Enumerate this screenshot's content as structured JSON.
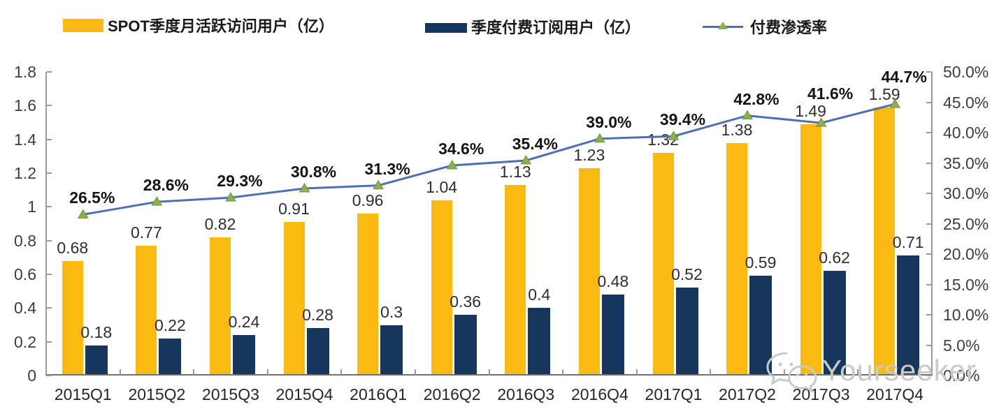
{
  "legend": [
    {
      "label": "SPOT季度月活跃访问用户（亿）",
      "type": "bar",
      "color": "#FBBA12"
    },
    {
      "label": "季度付费订阅用户（亿）",
      "type": "bar",
      "color": "#17365D"
    },
    {
      "label": "付费渗透率",
      "type": "line",
      "color": "#4C6FB5",
      "marker_color": "#8DB04C"
    }
  ],
  "chart_data": {
    "type": "combo-bar-line",
    "title": "",
    "categories": [
      "2015Q1",
      "2015Q2",
      "2015Q3",
      "2015Q4",
      "2016Q1",
      "2016Q2",
      "2016Q3",
      "2016Q4",
      "2017Q1",
      "2017Q2",
      "2017Q3",
      "2017Q4"
    ],
    "series": [
      {
        "name": "SPOT季度月活跃访问用户（亿）",
        "type": "bar",
        "axis": "left",
        "color": "#FBBA12",
        "values": [
          0.68,
          0.77,
          0.82,
          0.91,
          0.96,
          1.04,
          1.13,
          1.23,
          1.32,
          1.38,
          1.49,
          1.59
        ],
        "labels": [
          "0.68",
          "0.77",
          "0.82",
          "0.91",
          "0.96",
          "1.04",
          "1.13",
          "1.23",
          "1.32",
          "1.38",
          "1.49",
          "1.59"
        ]
      },
      {
        "name": "季度付费订阅用户（亿）",
        "type": "bar",
        "axis": "left",
        "color": "#17365D",
        "values": [
          0.18,
          0.22,
          0.24,
          0.28,
          0.3,
          0.36,
          0.4,
          0.48,
          0.52,
          0.59,
          0.62,
          0.71
        ],
        "labels": [
          "0.18",
          "0.22",
          "0.24",
          "0.28",
          "0.3",
          "0.36",
          "0.4",
          "0.48",
          "0.52",
          "0.59",
          "0.62",
          "0.71"
        ]
      },
      {
        "name": "付费渗透率",
        "type": "line",
        "axis": "right",
        "color": "#4C6FB5",
        "marker": "triangle",
        "marker_color": "#8DB04C",
        "marker_edge": "#6E963C",
        "values": [
          26.5,
          28.6,
          29.3,
          30.8,
          31.3,
          34.6,
          35.4,
          39.0,
          39.4,
          42.8,
          41.6,
          44.7
        ],
        "labels": [
          "26.5%",
          "28.6%",
          "29.3%",
          "30.8%",
          "31.3%",
          "34.6%",
          "35.4%",
          "39.0%",
          "39.4%",
          "42.8%",
          "41.6%",
          "44.7%"
        ]
      }
    ],
    "left_axis": {
      "min": 0,
      "max": 1.8,
      "step": 0.2,
      "ticks": [
        "1.8",
        "1.6",
        "1.4",
        "1.2",
        "1",
        "0.8",
        "0.6",
        "0.4",
        "0.2",
        "0"
      ]
    },
    "right_axis": {
      "min": 0,
      "max": 50,
      "step": 5,
      "ticks": [
        "50.0%",
        "45.0%",
        "40.0%",
        "35.0%",
        "30.0%",
        "25.0%",
        "20.0%",
        "15.0%",
        "10.0%",
        "5.0%",
        "0.0%"
      ]
    },
    "grid": false,
    "legend_position": "top"
  },
  "watermark": {
    "text": "Yourseeker",
    "icon": "wechat-icon",
    "color": "#c9c9c9"
  }
}
